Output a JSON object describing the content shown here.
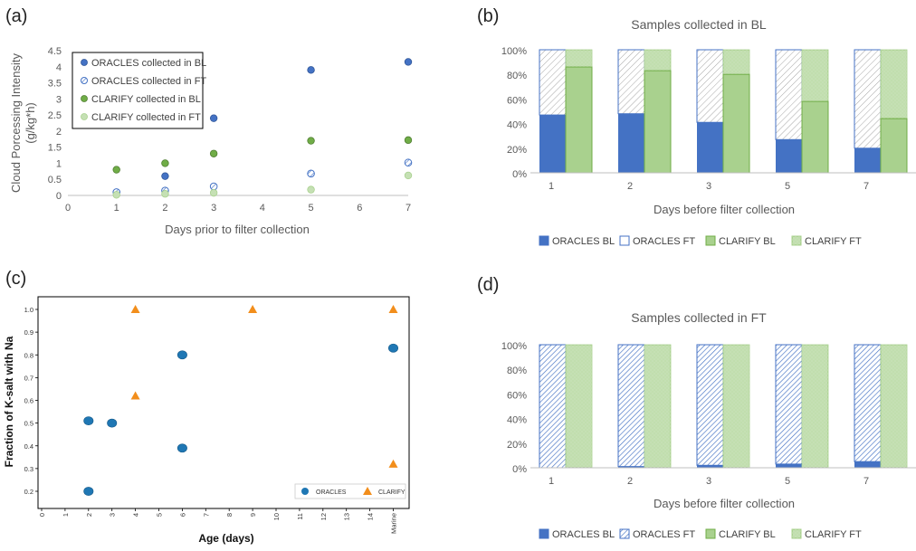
{
  "colors": {
    "oracles_bl": "#4472c4",
    "oracles_ft": "#4472c4",
    "clarify_bl": "#70ad47",
    "clarify_ft": "#a9d18e",
    "orange": "#f28e1c",
    "blue_c": "#1f77b4"
  },
  "chart_data": [
    {
      "panel": "(a)",
      "type": "scatter",
      "xlabel": "Days prior to filter collection",
      "ylabel_lines": [
        "Cloud Porcessing Intensity",
        "(g/kg*h)"
      ],
      "xlim": [
        0,
        7
      ],
      "ylim": [
        0,
        4.5
      ],
      "xticks": [
        "0",
        "1",
        "2",
        "3",
        "4",
        "5",
        "6",
        "7"
      ],
      "yticks": [
        "0",
        "0.5",
        "1",
        "1.5",
        "2",
        "2.5",
        "3",
        "3.5",
        "4",
        "4.5"
      ],
      "legend_position": "top-left",
      "series": [
        {
          "name": "ORACLES collected in BL",
          "x": [
            2,
            3,
            5,
            7
          ],
          "y": [
            0.6,
            2.4,
            3.9,
            4.15
          ]
        },
        {
          "name": "ORACLES collected in FT",
          "x": [
            1,
            2,
            3,
            5,
            7
          ],
          "y": [
            0.1,
            0.15,
            0.28,
            0.68,
            1.02
          ]
        },
        {
          "name": "CLARIFY collected in BL",
          "x": [
            1,
            2,
            3,
            5,
            7
          ],
          "y": [
            0.8,
            1.0,
            1.3,
            1.7,
            1.72
          ]
        },
        {
          "name": "CLARIFY collected in FT",
          "x": [
            1,
            2,
            3,
            5,
            7
          ],
          "y": [
            0.02,
            0.05,
            0.08,
            0.18,
            0.62
          ]
        }
      ]
    },
    {
      "panel": "(b)",
      "type": "bar",
      "stacked": "percent",
      "title": "Samples collected in BL",
      "xlabel": "Days before filter collection",
      "categories": [
        "1",
        "2",
        "3",
        "5",
        "7"
      ],
      "yticks": [
        "0%",
        "20%",
        "40%",
        "60%",
        "80%",
        "100%"
      ],
      "legend_position": "bottom",
      "legend": [
        "ORACLES BL",
        "ORACLES FT",
        "CLARIFY BL",
        "CLARIFY FT"
      ],
      "oracles_bl_pct": [
        47,
        48,
        41,
        27,
        20
      ],
      "clarify_bl_pct": [
        86,
        83,
        80,
        58,
        44
      ]
    },
    {
      "panel": "(c)",
      "type": "scatter",
      "xlabel": "Age (days)",
      "ylabel": "Fraction of K-salt with Na",
      "xticks": [
        "0",
        "1",
        "2",
        "3",
        "4",
        "5",
        "6",
        "7",
        "8",
        "9",
        "10",
        "11",
        "12",
        "13",
        "14",
        "Marine"
      ],
      "yticks": [
        "0.2",
        "0.3",
        "0.4",
        "0.5",
        "0.6",
        "0.7",
        "0.8",
        "0.9",
        "1.0"
      ],
      "ylim": [
        0.2,
        1.0
      ],
      "legend_position": "bottom-right",
      "series": [
        {
          "name": "ORACLES",
          "x": [
            2,
            2,
            3,
            6,
            6,
            "Marine"
          ],
          "y": [
            0.51,
            0.2,
            0.5,
            0.8,
            0.39,
            0.83
          ]
        },
        {
          "name": "CLARIFY",
          "x": [
            4,
            4,
            9,
            "Marine",
            "Marine"
          ],
          "y": [
            1.0,
            0.62,
            1.0,
            1.0,
            0.32
          ]
        }
      ]
    },
    {
      "panel": "(d)",
      "type": "bar",
      "stacked": "percent",
      "title": "Samples collected in FT",
      "xlabel": "Days before filter collection",
      "categories": [
        "1",
        "2",
        "3",
        "5",
        "7"
      ],
      "yticks": [
        "0%",
        "20%",
        "40%",
        "60%",
        "80%",
        "100%"
      ],
      "legend_position": "bottom",
      "legend": [
        "ORACLES BL",
        "ORACLES FT",
        "CLARIFY BL",
        "CLARIFY FT"
      ],
      "oracles_bl_pct": [
        0,
        1,
        2,
        3,
        5
      ],
      "clarify_bl_pct": [
        0,
        0,
        0,
        0,
        0
      ]
    }
  ]
}
